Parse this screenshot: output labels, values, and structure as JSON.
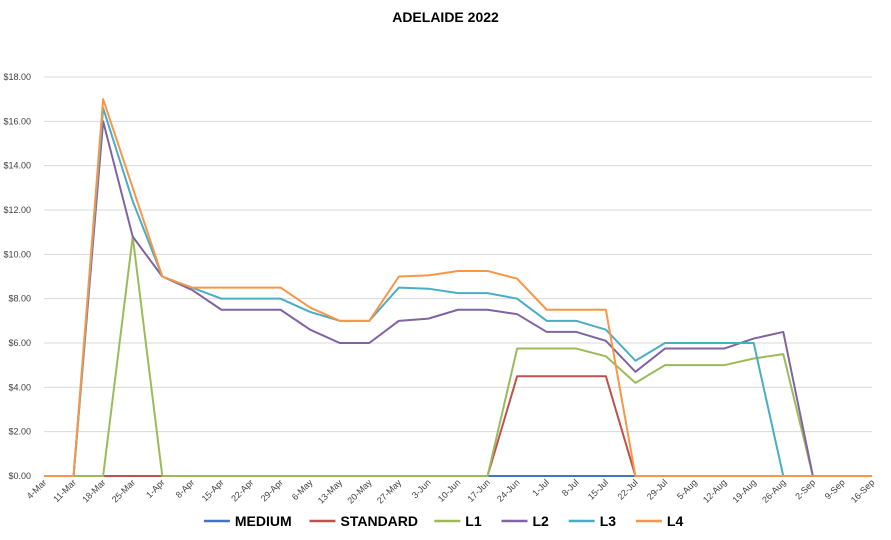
{
  "chart_data": {
    "type": "line",
    "title": "ADELAIDE 2022",
    "xlabel": "",
    "ylabel": "",
    "ylim": [
      0,
      18
    ],
    "y_ticks": [
      "$0.00",
      "$2.00",
      "$4.00",
      "$6.00",
      "$8.00",
      "$10.00",
      "$12.00",
      "$14.00",
      "$16.00",
      "$18.00"
    ],
    "grid": "horizontal",
    "legend_position": "bottom",
    "categories": [
      "4-Mar",
      "11-Mar",
      "18-Mar",
      "25-Mar",
      "1-Apr",
      "8-Apr",
      "15-Apr",
      "22-Apr",
      "29-Apr",
      "6-May",
      "13-May",
      "20-May",
      "27-May",
      "3-Jun",
      "10-Jun",
      "17-Jun",
      "24-Jun",
      "1-Jul",
      "8-Jul",
      "15-Jul",
      "22-Jul",
      "29-Jul",
      "5-Aug",
      "12-Aug",
      "19-Aug",
      "26-Aug",
      "2-Sep",
      "9-Sep",
      "16-Sep"
    ],
    "series": [
      {
        "name": "MEDIUM",
        "color": "#4472C4",
        "values": [
          null,
          0,
          null,
          null,
          null,
          null,
          null,
          null,
          null,
          null,
          null,
          null,
          null,
          null,
          null,
          0,
          0,
          0,
          0,
          0,
          0,
          null,
          null,
          null,
          null,
          null,
          null,
          null,
          null
        ]
      },
      {
        "name": "STANDARD",
        "color": "#C0504D",
        "values": [
          null,
          0,
          0,
          0,
          0,
          null,
          null,
          null,
          null,
          null,
          null,
          null,
          null,
          null,
          null,
          0,
          4.5,
          4.5,
          4.5,
          4.5,
          0,
          null,
          null,
          null,
          null,
          null,
          null,
          null,
          null
        ]
      },
      {
        "name": "L1",
        "color": "#9BBB59",
        "values": [
          null,
          0,
          0,
          10.8,
          0,
          0,
          0,
          0,
          0,
          0,
          0,
          0,
          0,
          0,
          0,
          0,
          5.75,
          5.75,
          5.75,
          5.4,
          4.2,
          5,
          5,
          5,
          5.3,
          5.5,
          0,
          null,
          null
        ]
      },
      {
        "name": "L2",
        "color": "#8064A2",
        "values": [
          null,
          0,
          16,
          10.8,
          9,
          8.4,
          7.5,
          7.5,
          7.5,
          6.6,
          6,
          6,
          7,
          7.1,
          7.5,
          7.5,
          7.3,
          6.5,
          6.5,
          6.1,
          4.7,
          5.75,
          5.75,
          5.75,
          6.2,
          6.5,
          0,
          null,
          null
        ]
      },
      {
        "name": "L3",
        "color": "#4BACC6",
        "values": [
          null,
          0,
          16.6,
          12.4,
          9,
          8.5,
          8,
          8,
          8,
          7.4,
          7,
          7,
          8.5,
          8.45,
          8.25,
          8.25,
          8,
          7,
          7,
          6.6,
          5.2,
          6,
          6,
          6,
          6,
          0,
          null,
          null,
          null
        ]
      },
      {
        "name": "L4",
        "color": "#F79646",
        "values": [
          0,
          0,
          17,
          13,
          9,
          8.5,
          8.5,
          8.5,
          8.5,
          7.6,
          7,
          7,
          9,
          9.05,
          9.25,
          9.25,
          8.9,
          7.5,
          7.5,
          7.5,
          0,
          0,
          0,
          0,
          0,
          0,
          0,
          0,
          0
        ]
      }
    ]
  }
}
